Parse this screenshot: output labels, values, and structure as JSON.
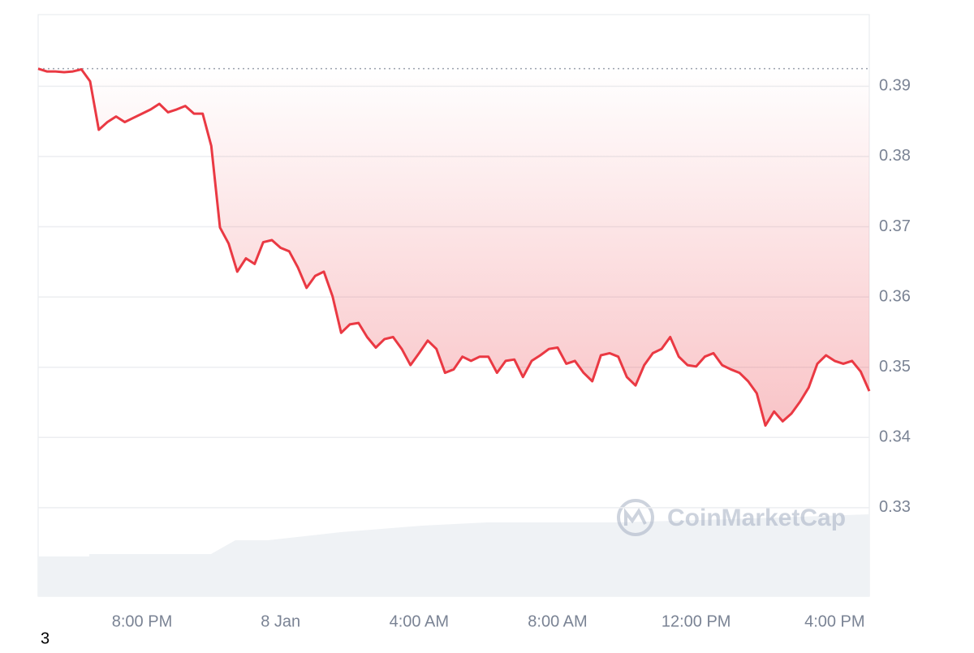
{
  "chart_data": {
    "type": "line",
    "color": "#ea3943",
    "baseline": 0.3925,
    "values": [
      0.3925,
      0.3921,
      0.3921,
      0.392,
      0.3921,
      0.3924,
      0.3907,
      0.3838,
      0.3849,
      0.3857,
      0.3849,
      0.3855,
      0.3861,
      0.3867,
      0.3875,
      0.3863,
      0.3867,
      0.3872,
      0.3861,
      0.3861,
      0.3815,
      0.3699,
      0.3676,
      0.3636,
      0.3655,
      0.3647,
      0.3678,
      0.3681,
      0.367,
      0.3665,
      0.3642,
      0.3613,
      0.363,
      0.3636,
      0.3601,
      0.3549,
      0.3561,
      0.3563,
      0.3543,
      0.3528,
      0.354,
      0.3543,
      0.3526,
      0.3503,
      0.352,
      0.3538,
      0.3526,
      0.3492,
      0.3497,
      0.3515,
      0.3509,
      0.3515,
      0.3515,
      0.3492,
      0.3509,
      0.3511,
      0.3486,
      0.3509,
      0.3517,
      0.3526,
      0.3528,
      0.3505,
      0.3509,
      0.3492,
      0.348,
      0.3517,
      0.352,
      0.3515,
      0.3486,
      0.3474,
      0.3503,
      0.352,
      0.3526,
      0.3543,
      0.3515,
      0.3503,
      0.3501,
      0.3515,
      0.352,
      0.3503,
      0.3497,
      0.3492,
      0.348,
      0.3463,
      0.3417,
      0.3437,
      0.3423,
      0.3434,
      0.3451,
      0.3471,
      0.3505,
      0.3517,
      0.3509,
      0.3505,
      0.3509,
      0.3494,
      0.3466
    ],
    "ylim": [
      0.3174,
      0.4002
    ],
    "yticks": [
      0.33,
      0.34,
      0.35,
      0.36,
      0.37,
      0.38,
      0.39
    ],
    "xticks": [
      {
        "value": 12,
        "label": "8:00 PM"
      },
      {
        "value": 28,
        "label": "8 Jan"
      },
      {
        "value": 44,
        "label": "4:00 AM"
      },
      {
        "value": 60,
        "label": "8:00 AM"
      },
      {
        "value": 76,
        "label": "12:00 PM"
      },
      {
        "value": 92,
        "label": "4:00 PM"
      }
    ],
    "grid": true,
    "watermark": "CoinMarketCap",
    "footnote": "3"
  }
}
